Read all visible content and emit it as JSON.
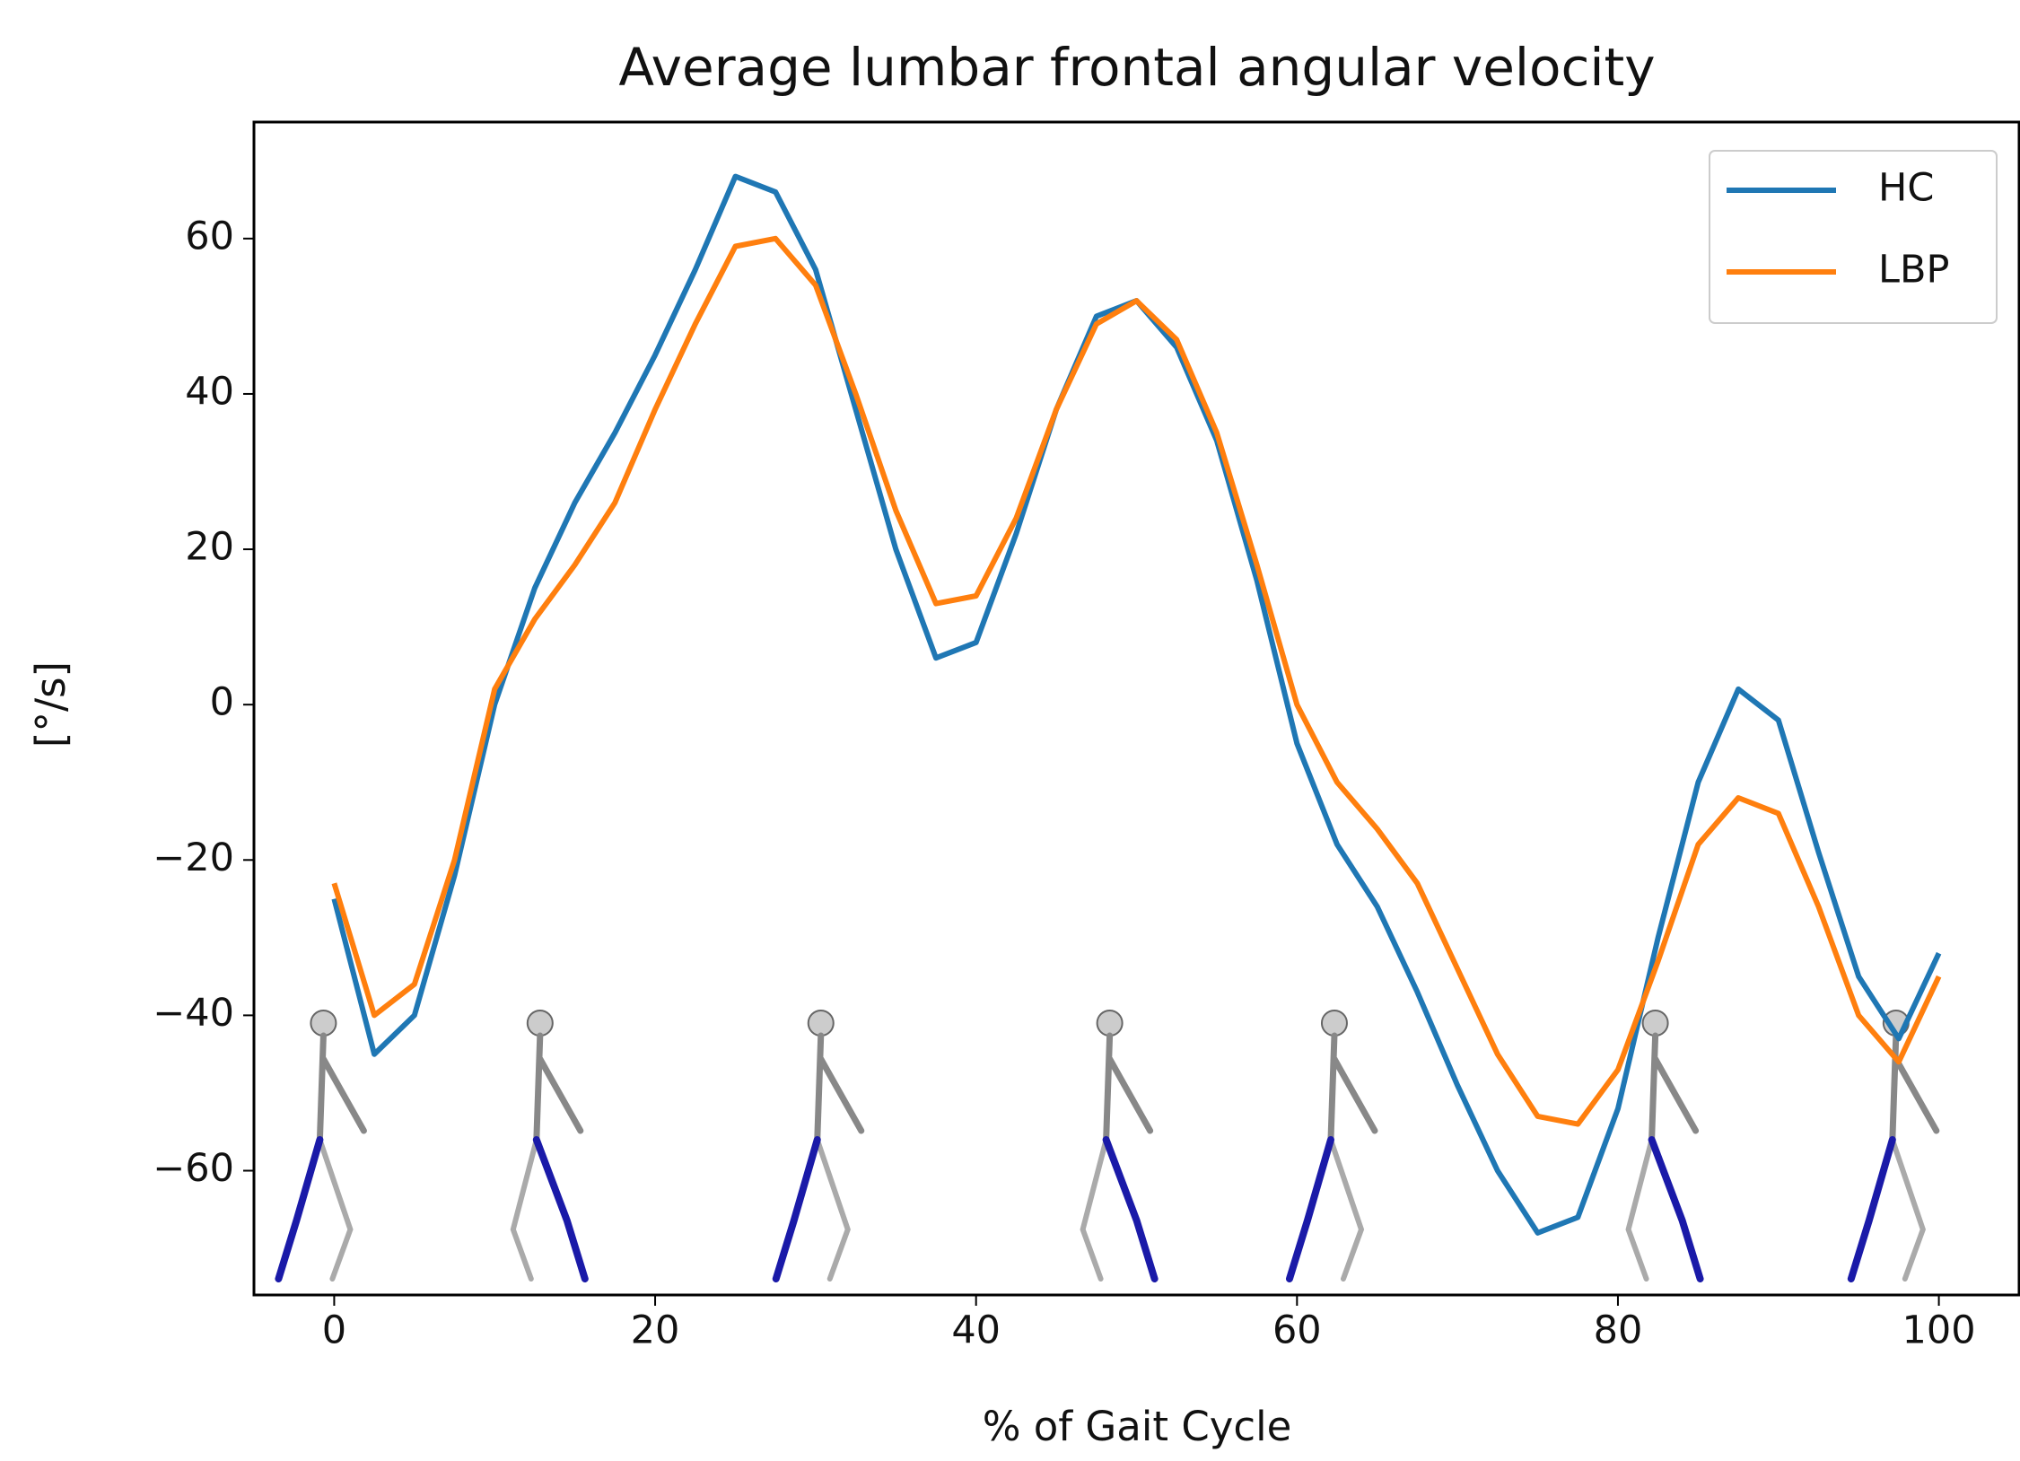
{
  "chart_data": {
    "type": "line",
    "title": "Average lumbar frontal angular velocity",
    "xlabel": "% of Gait Cycle",
    "ylabel": "[°/s]",
    "x": [
      0,
      2.5,
      5,
      7.5,
      10,
      12.5,
      15,
      17.5,
      20,
      22.5,
      25,
      27.5,
      30,
      32.5,
      35,
      37.5,
      40,
      42.5,
      45,
      47.5,
      50,
      52.5,
      55,
      57.5,
      60,
      62.5,
      65,
      67.5,
      70,
      72.5,
      75,
      77.5,
      80,
      82.5,
      85,
      87.5,
      90,
      92.5,
      95,
      97.5,
      100
    ],
    "series": [
      {
        "name": "HC",
        "color": "#1f77b4",
        "values": [
          -25,
          -45,
          -40,
          -22,
          0,
          15,
          26,
          35,
          45,
          56,
          68,
          66,
          56,
          38,
          20,
          6,
          8,
          22,
          38,
          50,
          52,
          46,
          34,
          16,
          -5,
          -18,
          -26,
          -37,
          -49,
          -60,
          -68,
          -66,
          -52,
          -30,
          -10,
          2,
          -2,
          -19,
          -35,
          -43,
          -32
        ]
      },
      {
        "name": "LBP",
        "color": "#ff7f0e",
        "values": [
          -23,
          -40,
          -36,
          -20,
          2,
          11,
          18,
          26,
          38,
          49,
          59,
          60,
          54,
          40,
          25,
          13,
          14,
          24,
          38,
          49,
          52,
          47,
          35,
          18,
          0,
          -10,
          -16,
          -23,
          -34,
          -45,
          -53,
          -54,
          -47,
          -33,
          -18,
          -12,
          -14,
          -26,
          -40,
          -46,
          -35
        ]
      }
    ],
    "xlim": [
      -5,
      105
    ],
    "ylim": [
      -76,
      75
    ],
    "xticks": [
      0,
      20,
      40,
      60,
      80,
      100
    ],
    "yticks": [
      {
        "value": -60,
        "label": "−60"
      },
      {
        "value": -40,
        "label": "−40"
      },
      {
        "value": -20,
        "label": "−20"
      },
      0,
      20,
      40,
      60
    ],
    "legend": "upper right",
    "grid": false
  }
}
